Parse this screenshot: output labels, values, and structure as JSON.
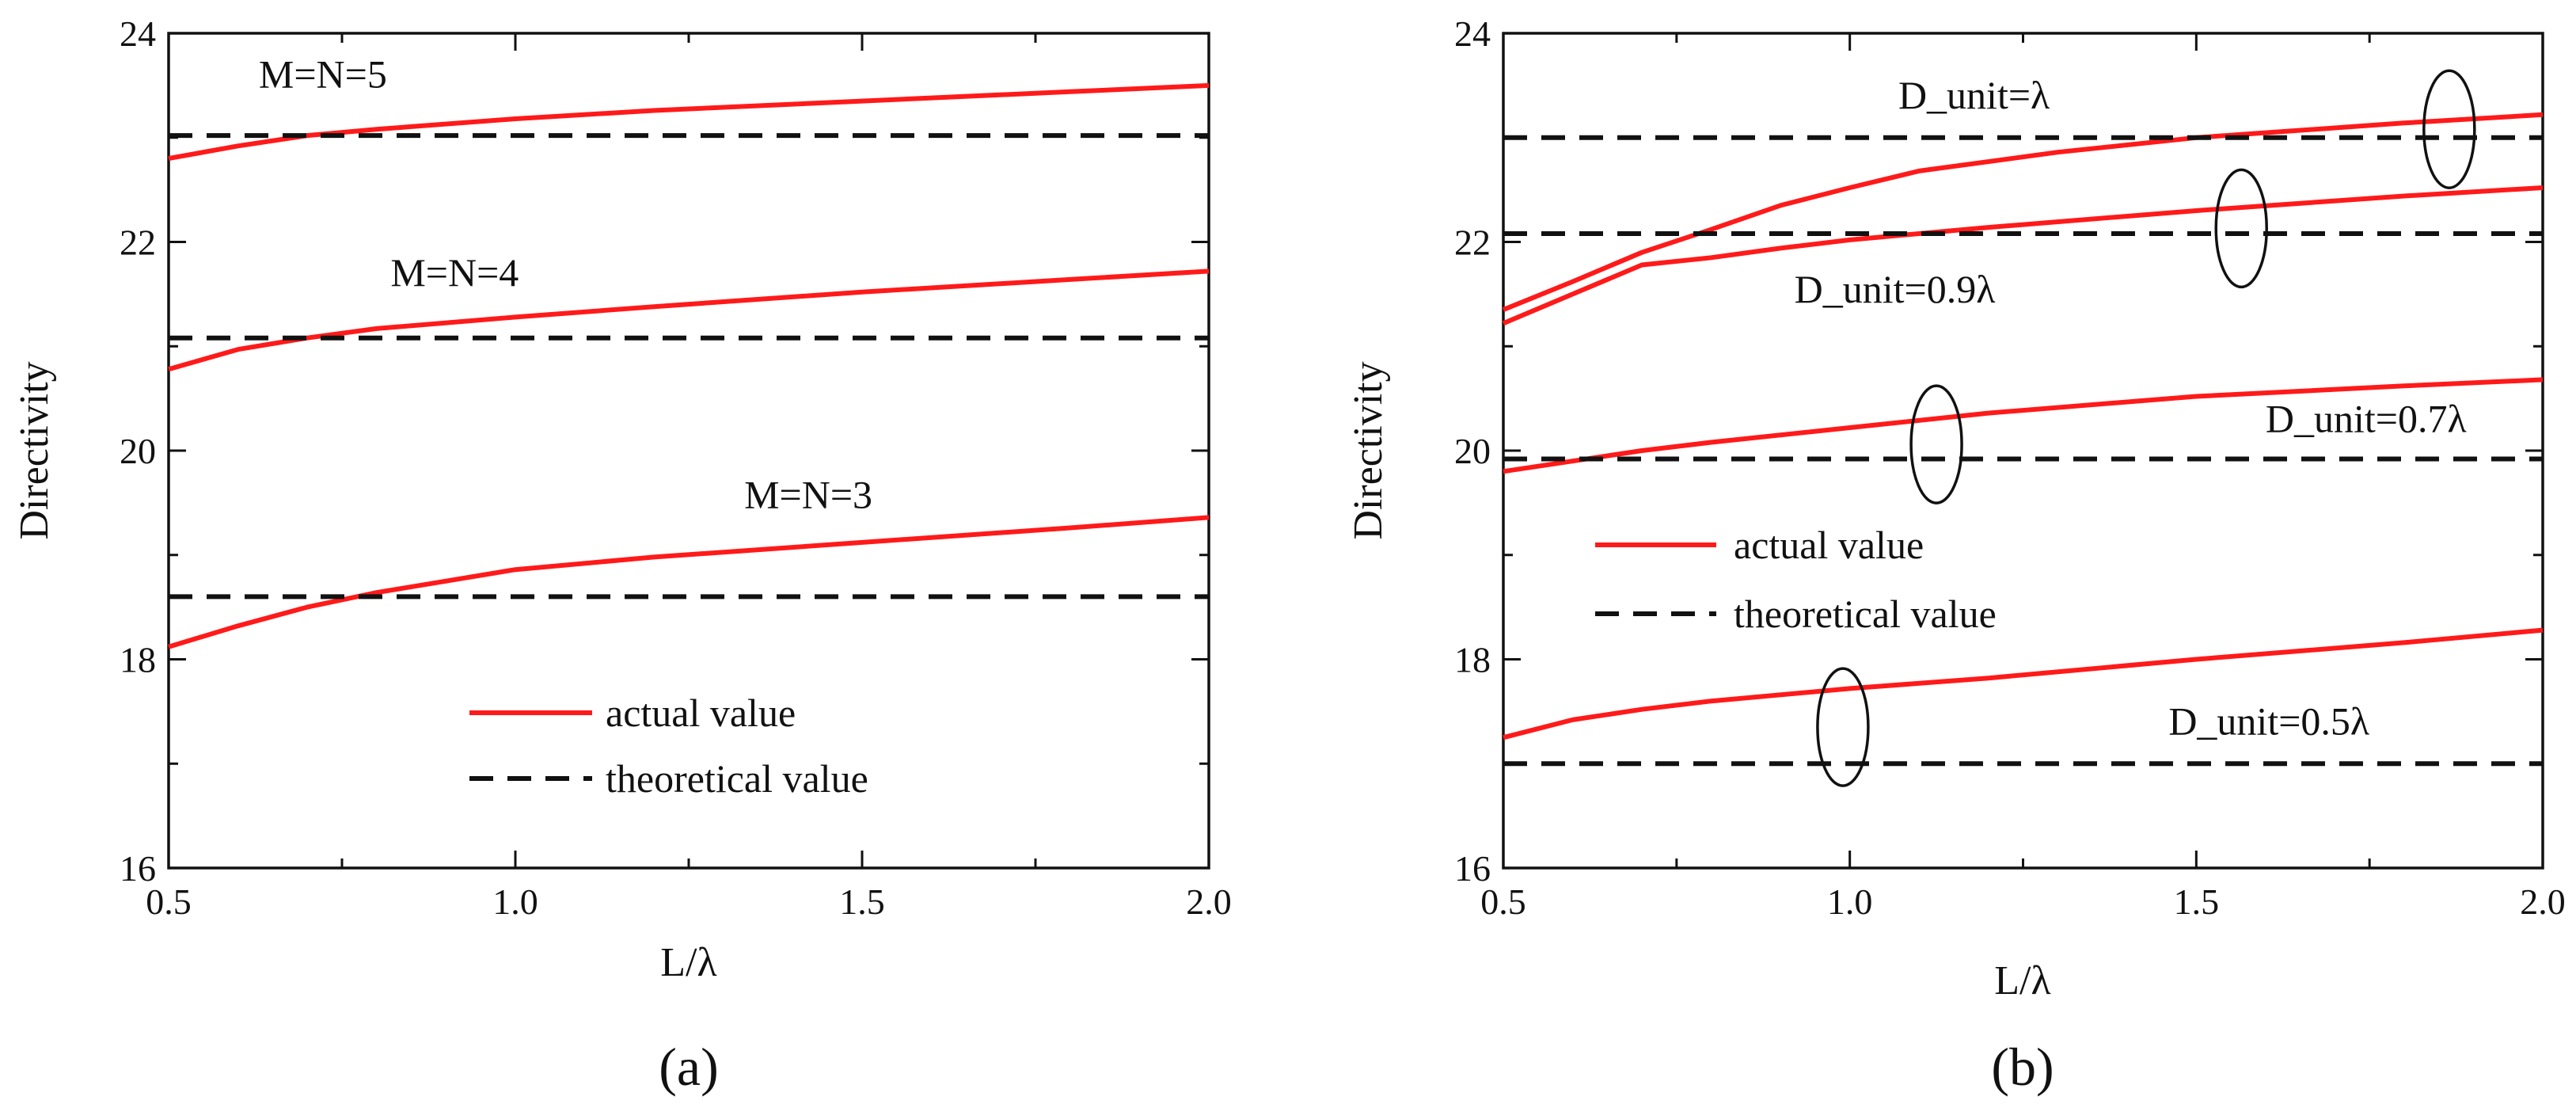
{
  "chart_data": [
    {
      "type": "line",
      "panel": "a",
      "caption": "(a)",
      "xlabel": "L/λ",
      "ylabel": "Directivity",
      "xlim": [
        0.5,
        2.0
      ],
      "ylim": [
        16,
        24
      ],
      "xticks": [
        "0.5",
        "1.0",
        "1.5",
        "2.0"
      ],
      "yticks": [
        "16",
        "18",
        "20",
        "22",
        "24"
      ],
      "colors": {
        "actual": "#ff1a1a",
        "theoretical": "#111111"
      },
      "series": [
        {
          "name": "M=N=5 actual",
          "kind": "actual",
          "x": [
            0.5,
            0.6,
            0.7,
            0.8,
            1.0,
            1.2,
            1.5,
            1.8,
            2.0
          ],
          "y": [
            22.8,
            22.92,
            23.02,
            23.08,
            23.18,
            23.26,
            23.35,
            23.44,
            23.5
          ]
        },
        {
          "name": "M=N=5 theoretical",
          "kind": "theoretical",
          "x": [
            0.5,
            2.0
          ],
          "y": [
            23.02,
            23.02
          ]
        },
        {
          "name": "M=N=4 actual",
          "kind": "actual",
          "x": [
            0.5,
            0.6,
            0.7,
            0.8,
            1.0,
            1.2,
            1.5,
            1.8,
            2.0
          ],
          "y": [
            20.78,
            20.97,
            21.08,
            21.17,
            21.28,
            21.38,
            21.52,
            21.64,
            21.72
          ]
        },
        {
          "name": "M=N=4 theoretical",
          "kind": "theoretical",
          "x": [
            0.5,
            2.0
          ],
          "y": [
            21.08,
            21.08
          ]
        },
        {
          "name": "M=N=3 actual",
          "kind": "actual",
          "x": [
            0.5,
            0.6,
            0.7,
            0.8,
            1.0,
            1.2,
            1.5,
            1.8,
            2.0
          ],
          "y": [
            18.12,
            18.32,
            18.5,
            18.64,
            18.86,
            18.98,
            19.12,
            19.26,
            19.36
          ]
        },
        {
          "name": "M=N=3 theoretical",
          "kind": "theoretical",
          "x": [
            0.5,
            2.0
          ],
          "y": [
            18.6,
            18.6
          ]
        }
      ],
      "annotations": [
        {
          "text": "M=N=5",
          "x": 0.63,
          "y": 23.48
        },
        {
          "text": "M=N=4",
          "x": 0.82,
          "y": 21.58
        },
        {
          "text": "M=N=3",
          "x": 1.33,
          "y": 19.45
        }
      ],
      "legend": {
        "position": "bottom-center",
        "entries": [
          "actual value",
          "theoretical value"
        ]
      }
    },
    {
      "type": "line",
      "panel": "b",
      "caption": "(b)",
      "xlabel": "L/λ",
      "ylabel": "Directivity",
      "xlim": [
        0.5,
        2.0
      ],
      "ylim": [
        16,
        24
      ],
      "xticks": [
        "0.5",
        "1.0",
        "1.5",
        "2.0"
      ],
      "yticks": [
        "16",
        "18",
        "20",
        "22",
        "24"
      ],
      "colors": {
        "actual": "#ff1a1a",
        "theoretical": "#111111"
      },
      "series": [
        {
          "name": "D_unit=λ actual",
          "kind": "actual",
          "x": [
            0.5,
            0.6,
            0.7,
            0.8,
            0.9,
            1.0,
            1.1,
            1.3,
            1.5,
            1.8,
            2.0
          ],
          "y": [
            21.35,
            21.62,
            21.9,
            22.12,
            22.35,
            22.52,
            22.68,
            22.86,
            23.0,
            23.14,
            23.22
          ]
        },
        {
          "name": "D_unit=λ theoretical",
          "kind": "theoretical",
          "x": [
            0.5,
            2.0
          ],
          "y": [
            23.0,
            23.0
          ]
        },
        {
          "name": "D_unit=0.9λ actual",
          "kind": "actual",
          "x": [
            0.5,
            0.6,
            0.7,
            0.8,
            0.9,
            1.0,
            1.2,
            1.5,
            1.8,
            2.0
          ],
          "y": [
            21.22,
            21.5,
            21.78,
            21.85,
            21.94,
            22.02,
            22.14,
            22.3,
            22.44,
            22.52
          ]
        },
        {
          "name": "D_unit=0.9λ theoretical",
          "kind": "theoretical",
          "x": [
            0.5,
            2.0
          ],
          "y": [
            22.08,
            22.08
          ]
        },
        {
          "name": "D_unit=0.7λ actual",
          "kind": "actual",
          "x": [
            0.5,
            0.6,
            0.7,
            0.8,
            1.0,
            1.2,
            1.5,
            1.8,
            2.0
          ],
          "y": [
            19.8,
            19.9,
            20.0,
            20.08,
            20.22,
            20.36,
            20.52,
            20.62,
            20.68
          ]
        },
        {
          "name": "D_unit=0.7λ theoretical",
          "kind": "theoretical",
          "x": [
            0.5,
            2.0
          ],
          "y": [
            19.92,
            19.92
          ]
        },
        {
          "name": "D_unit=0.5λ actual",
          "kind": "actual",
          "x": [
            0.5,
            0.6,
            0.7,
            0.8,
            1.0,
            1.2,
            1.5,
            1.8,
            2.0
          ],
          "y": [
            17.25,
            17.42,
            17.52,
            17.6,
            17.72,
            17.82,
            18.0,
            18.16,
            18.28
          ]
        },
        {
          "name": "D_unit=0.5λ theoretical",
          "kind": "theoretical",
          "x": [
            0.5,
            2.0
          ],
          "y": [
            17.0,
            17.0
          ]
        }
      ],
      "annotations": [
        {
          "text": "D_unit=λ",
          "x": 1.07,
          "y": 23.28
        },
        {
          "text": "D_unit=0.9λ",
          "x": 0.92,
          "y": 21.42
        },
        {
          "text": "D_unit=0.7λ",
          "x": 1.6,
          "y": 20.18
        },
        {
          "text": "D_unit=0.5λ",
          "x": 1.46,
          "y": 17.28
        }
      ],
      "ellipses": [
        {
          "x": 1.865,
          "y": 23.08
        },
        {
          "x": 1.565,
          "y": 22.13
        },
        {
          "x": 1.125,
          "y": 20.06
        },
        {
          "x": 0.99,
          "y": 17.35
        }
      ],
      "legend": {
        "position": "middle-left",
        "entries": [
          "actual value",
          "theoretical value"
        ]
      }
    }
  ]
}
